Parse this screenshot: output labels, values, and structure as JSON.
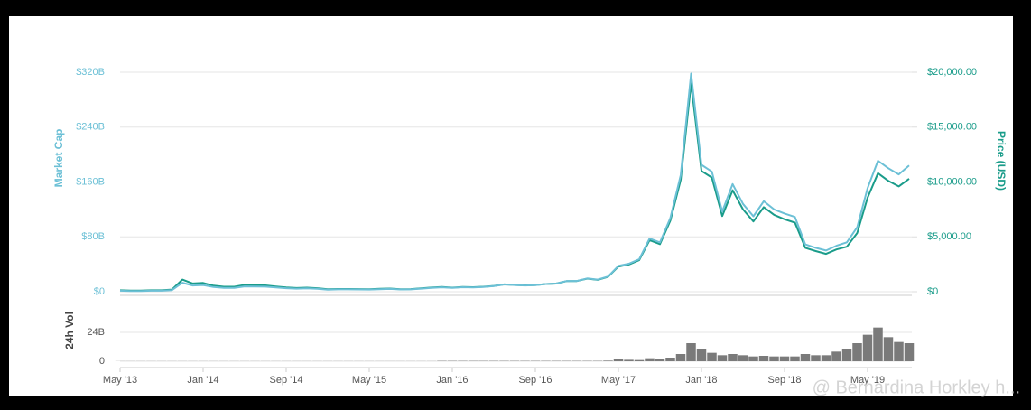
{
  "chart_data": [
    {
      "type": "line",
      "ylabel": "Market Cap",
      "y2label": "Price (USD)",
      "categories": [
        "May '13",
        null,
        null,
        null,
        null,
        null,
        null,
        null,
        "Jan '14",
        null,
        null,
        null,
        null,
        null,
        null,
        null,
        "Sep '14",
        null,
        null,
        null,
        null,
        null,
        null,
        null,
        "May '15",
        null,
        null,
        null,
        null,
        null,
        null,
        null,
        "Jan '16",
        null,
        null,
        null,
        null,
        null,
        null,
        null,
        "Sep '16",
        null,
        null,
        null,
        null,
        null,
        null,
        null,
        "May '17",
        null,
        null,
        null,
        null,
        null,
        null,
        null,
        "Jan '18",
        null,
        null,
        null,
        null,
        null,
        null,
        null,
        "Sep '18",
        null,
        null,
        null,
        null,
        null,
        null,
        null,
        "May '19",
        null,
        null,
        null,
        null
      ],
      "series": [
        {
          "color": "#6cc0d6",
          "axis": "y",
          "values": [
            1.4,
            1.1,
            1.1,
            1.5,
            1.5,
            2.4,
            13,
            9.1,
            9.8,
            6.8,
            5.6,
            5.6,
            7.8,
            7.6,
            7.4,
            6.2,
            5.1,
            4.5,
            4.9,
            4.3,
            3.0,
            3.4,
            3.4,
            3.3,
            3.2,
            3.7,
            4.1,
            3.3,
            3.4,
            4.5,
            5.5,
            6.4,
            5.6,
            6.6,
            6.3,
            6.9,
            8.2,
            10.5,
            9.8,
            9.1,
            9.6,
            11.2,
            11.9,
            15.5,
            15.7,
            19.3,
            17.6,
            22.1,
            37.7,
            40.8,
            47.3,
            77.6,
            71.9,
            107.5,
            170,
            318,
            185,
            175,
            117,
            157,
            128,
            110,
            132,
            120,
            114,
            109,
            69,
            64,
            60,
            67,
            72,
            94,
            151,
            191,
            180,
            171,
            184
          ]
        },
        {
          "color": "#1a9c8a",
          "axis": "y2",
          "values": [
            130,
            100,
            100,
            130,
            130,
            200,
            1100,
            750,
            800,
            550,
            450,
            450,
            620,
            600,
            580,
            480,
            390,
            340,
            370,
            320,
            220,
            250,
            245,
            235,
            230,
            260,
            285,
            230,
            235,
            310,
            375,
            430,
            370,
            435,
            415,
            450,
            530,
            670,
            620,
            575,
            605,
            700,
            740,
            960,
            970,
            1190,
            1080,
            1350,
            2300,
            2480,
            2870,
            4700,
            4340,
            6470,
            10200,
            19000,
            11000,
            10400,
            6900,
            9240,
            7500,
            6400,
            7700,
            7000,
            6600,
            6300,
            4000,
            3700,
            3450,
            3850,
            4100,
            5350,
            8570,
            10800,
            10100,
            9600,
            10300
          ]
        }
      ],
      "ylim": [
        0,
        320
      ],
      "yticks": [
        {
          "value": 0,
          "label": "$0"
        },
        {
          "value": 80,
          "label": "$80B"
        },
        {
          "value": 160,
          "label": "$160B"
        },
        {
          "value": 240,
          "label": "$240B"
        },
        {
          "value": 320,
          "label": "$320B"
        }
      ],
      "y2lim": [
        0,
        20000
      ],
      "y2ticks": [
        {
          "value": 0,
          "label": "$0"
        },
        {
          "value": 5000,
          "label": "$5,000.00"
        },
        {
          "value": 10000,
          "label": "$10,000.00"
        },
        {
          "value": 15000,
          "label": "$15,000.00"
        },
        {
          "value": 20000,
          "label": "$20,000.00"
        }
      ],
      "grid": true
    },
    {
      "type": "bar",
      "ylabel": "24h Vol",
      "color": "#7a7a7a",
      "values": [
        0.1,
        0.1,
        0.1,
        0.1,
        0.1,
        0.1,
        0.1,
        0.1,
        0.1,
        0.1,
        0.1,
        0.1,
        0.1,
        0.1,
        0.1,
        0.1,
        0.1,
        0.1,
        0.1,
        0.1,
        0.1,
        0.1,
        0.1,
        0.1,
        0.1,
        0.1,
        0.1,
        0.1,
        0.1,
        0.1,
        0.1,
        0.3,
        0.3,
        0.3,
        0.3,
        0.3,
        0.3,
        0.3,
        0.3,
        0.3,
        0.3,
        0.3,
        0.3,
        0.3,
        0.3,
        0.3,
        0.3,
        0.5,
        1.5,
        1.2,
        1.0,
        2.5,
        2.0,
        3.0,
        6,
        15,
        10,
        7,
        5,
        6,
        5,
        4,
        4.5,
        4,
        4,
        4,
        6,
        5,
        5,
        8,
        10,
        15,
        22,
        28,
        20,
        16,
        15
      ],
      "ylim": [
        0,
        48
      ],
      "yticks": [
        0,
        {
          "value": 24,
          "label": "24B"
        }
      ],
      "grid": true
    }
  ],
  "watermark": "@ Bernardina Horkley h..."
}
